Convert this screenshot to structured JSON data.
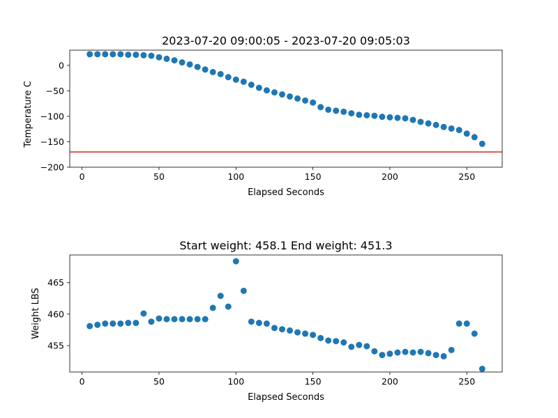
{
  "chart_data": [
    {
      "type": "scatter",
      "title": "2023-07-20 09:00:05 - 2023-07-20 09:05:03",
      "xlabel": "Elapsed Seconds",
      "ylabel": "Temperature C",
      "xlim": [
        -8,
        273
      ],
      "ylim": [
        -200,
        30
      ],
      "xticks": [
        0,
        50,
        100,
        150,
        200,
        250
      ],
      "yticks": [
        0,
        -50,
        -100,
        -150,
        -200
      ],
      "grid": false,
      "marker_color": "#1f77b4",
      "reference_line": {
        "y": -170,
        "color": "#d62728"
      },
      "x": [
        5,
        10,
        15,
        20,
        25,
        30,
        35,
        40,
        45,
        50,
        55,
        60,
        65,
        70,
        75,
        80,
        85,
        90,
        95,
        100,
        105,
        110,
        115,
        120,
        125,
        130,
        135,
        140,
        145,
        150,
        155,
        160,
        165,
        170,
        175,
        180,
        185,
        190,
        195,
        200,
        205,
        210,
        215,
        220,
        225,
        230,
        235,
        240,
        245,
        250,
        255,
        260
      ],
      "y": [
        22,
        22,
        22,
        22,
        22,
        21,
        21,
        20,
        19,
        16,
        13,
        10,
        6,
        2,
        -3,
        -8,
        -13,
        -17,
        -23,
        -28,
        -32,
        -38,
        -44,
        -49,
        -53,
        -57,
        -61,
        -65,
        -69,
        -73,
        -82,
        -87,
        -89,
        -91,
        -94,
        -97,
        -98,
        -99,
        -101,
        -102,
        -103,
        -104,
        -107,
        -111,
        -114,
        -117,
        -121,
        -124,
        -127,
        -134,
        -141,
        -154
      ]
    },
    {
      "type": "scatter",
      "title": "Start weight: 458.1 End weight: 451.3",
      "xlabel": "Elapsed Seconds",
      "ylabel": "Weight LBS",
      "xlim": [
        -8,
        273
      ],
      "ylim": [
        450.8,
        469.4
      ],
      "xticks": [
        0,
        50,
        100,
        150,
        200,
        250
      ],
      "yticks": [
        455,
        460,
        465
      ],
      "grid": false,
      "marker_color": "#1f77b4",
      "x": [
        5,
        10,
        15,
        20,
        25,
        30,
        35,
        40,
        45,
        50,
        55,
        60,
        65,
        70,
        75,
        80,
        85,
        90,
        95,
        100,
        105,
        110,
        115,
        120,
        125,
        130,
        135,
        140,
        145,
        150,
        155,
        160,
        165,
        170,
        175,
        180,
        185,
        190,
        195,
        200,
        205,
        210,
        215,
        220,
        225,
        230,
        235,
        240,
        245,
        250,
        255,
        260
      ],
      "y": [
        458.1,
        458.3,
        458.5,
        458.5,
        458.5,
        458.6,
        458.6,
        460.1,
        458.8,
        459.3,
        459.2,
        459.2,
        459.2,
        459.2,
        459.2,
        459.2,
        461.0,
        462.9,
        461.2,
        468.4,
        463.7,
        458.8,
        458.6,
        458.5,
        457.8,
        457.6,
        457.4,
        457.1,
        456.9,
        456.7,
        456.2,
        455.8,
        455.7,
        455.5,
        454.8,
        455.1,
        454.9,
        454.1,
        453.5,
        453.7,
        453.9,
        454.0,
        453.9,
        454.0,
        453.8,
        453.5,
        453.3,
        454.3,
        458.5,
        458.5,
        456.9,
        451.3
      ]
    }
  ]
}
